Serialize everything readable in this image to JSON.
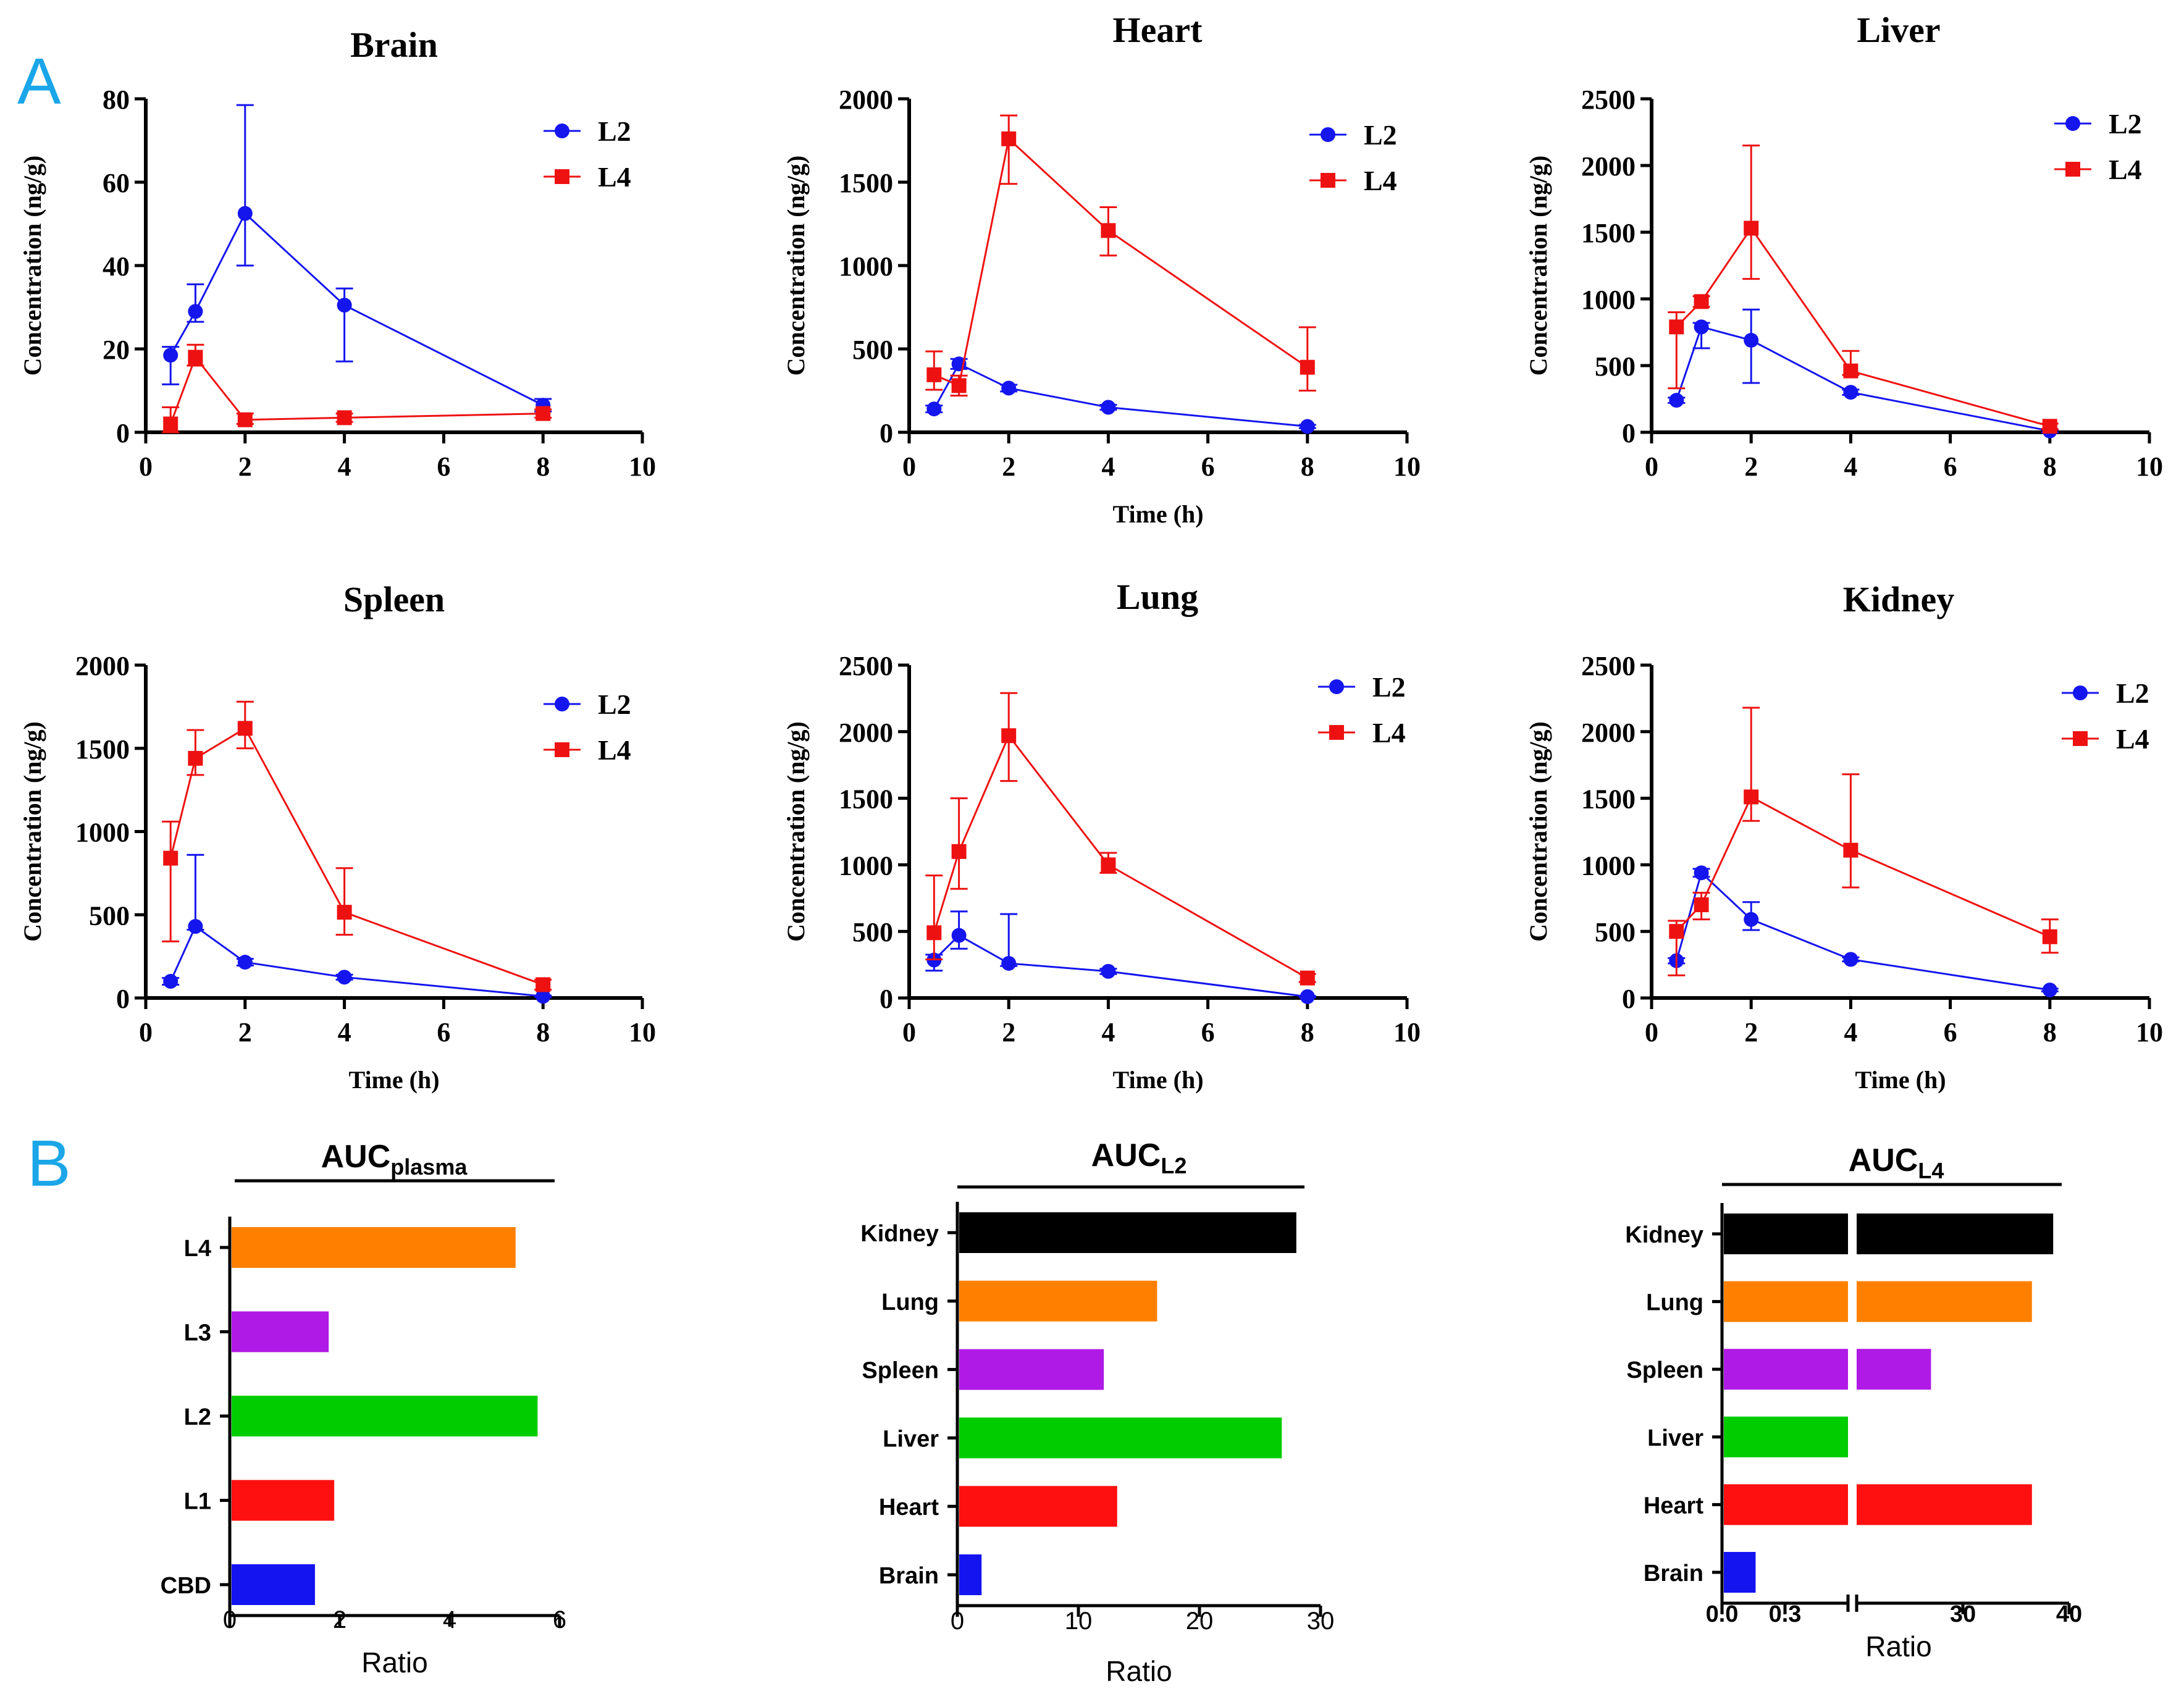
{
  "panel_labels": {
    "a": "A",
    "b": "B"
  },
  "colors": {
    "l2": "#1515ee",
    "l4": "#ee1111",
    "axis": "#000000"
  },
  "series_names": {
    "l2": "L2",
    "l4": "L4"
  },
  "line_charts": {
    "common": {
      "ylabel": "Concentration (ng/g)",
      "xlabel": "Time (h)",
      "xlim": [
        0,
        10
      ],
      "xticks": [
        0,
        2,
        4,
        6,
        8,
        10
      ]
    }
  },
  "chart_data": [
    {
      "type": "line",
      "title": "Brain",
      "ylim": [
        0,
        80
      ],
      "yticks": [
        0,
        20,
        40,
        60,
        80
      ],
      "show_xlabel": false,
      "series": [
        {
          "name": "L2",
          "x": [
            0.5,
            1,
            2,
            4,
            8
          ],
          "values": [
            18.5,
            29,
            52.5,
            30.5,
            6.5
          ],
          "err_hi": [
            2,
            6.5,
            26,
            4,
            1.5
          ],
          "err_lo": [
            7,
            2.5,
            12.5,
            13.5,
            1.5
          ]
        },
        {
          "name": "L4",
          "x": [
            0.5,
            1,
            2,
            4,
            8
          ],
          "values": [
            2,
            18,
            3,
            3.5,
            4.5
          ],
          "err_hi": [
            4,
            3,
            1.5,
            1,
            1
          ],
          "err_lo": [
            2,
            2,
            1,
            1,
            1
          ]
        }
      ]
    },
    {
      "type": "line",
      "title": "Heart",
      "ylim": [
        0,
        2000
      ],
      "yticks": [
        0,
        500,
        1000,
        1500,
        2000
      ],
      "show_xlabel": true,
      "series": [
        {
          "name": "L2",
          "x": [
            0.5,
            1,
            2,
            4,
            8
          ],
          "values": [
            140,
            410,
            265,
            150,
            35
          ],
          "err_hi": [
            20,
            30,
            20,
            15,
            10
          ],
          "err_lo": [
            20,
            30,
            20,
            15,
            10
          ]
        },
        {
          "name": "L4",
          "x": [
            0.5,
            1,
            2,
            4,
            8
          ],
          "values": [
            345,
            280,
            1760,
            1210,
            390
          ],
          "err_hi": [
            140,
            60,
            140,
            140,
            240
          ],
          "err_lo": [
            90,
            60,
            270,
            150,
            140
          ]
        }
      ]
    },
    {
      "type": "line",
      "title": "Liver",
      "ylim": [
        0,
        2500
      ],
      "yticks": [
        0,
        500,
        1000,
        1500,
        2000,
        2500
      ],
      "show_xlabel": false,
      "series": [
        {
          "name": "L2",
          "x": [
            0.5,
            1,
            2,
            4,
            8
          ],
          "values": [
            240,
            790,
            690,
            300,
            10
          ],
          "err_hi": [
            20,
            30,
            230,
            20,
            10
          ],
          "err_lo": [
            20,
            160,
            320,
            20,
            10
          ]
        },
        {
          "name": "L4",
          "x": [
            0.5,
            1,
            2,
            4,
            8
          ],
          "values": [
            790,
            980,
            1530,
            460,
            45
          ],
          "err_hi": [
            110,
            40,
            620,
            150,
            20
          ],
          "err_lo": [
            460,
            40,
            380,
            30,
            20
          ]
        }
      ]
    },
    {
      "type": "line",
      "title": "Spleen",
      "ylim": [
        0,
        2000
      ],
      "yticks": [
        0,
        500,
        1000,
        1500,
        2000
      ],
      "show_xlabel": true,
      "series": [
        {
          "name": "L2",
          "x": [
            0.5,
            1,
            2,
            4,
            8
          ],
          "values": [
            100,
            430,
            215,
            125,
            10
          ],
          "err_hi": [
            20,
            430,
            20,
            15,
            5
          ],
          "err_lo": [
            20,
            20,
            20,
            15,
            5
          ]
        },
        {
          "name": "L4",
          "x": [
            0.5,
            1,
            2,
            4,
            8
          ],
          "values": [
            840,
            1440,
            1620,
            515,
            80
          ],
          "err_hi": [
            220,
            170,
            160,
            265,
            30
          ],
          "err_lo": [
            500,
            100,
            120,
            135,
            30
          ]
        }
      ]
    },
    {
      "type": "line",
      "title": "Lung",
      "ylim": [
        0,
        2500
      ],
      "yticks": [
        0,
        500,
        1000,
        1500,
        2000,
        2500
      ],
      "show_xlabel": true,
      "series": [
        {
          "name": "L2",
          "x": [
            0.5,
            1,
            2,
            4,
            8
          ],
          "values": [
            285,
            470,
            260,
            200,
            10
          ],
          "err_hi": [
            40,
            180,
            370,
            20,
            5
          ],
          "err_lo": [
            80,
            100,
            20,
            20,
            5
          ]
        },
        {
          "name": "L4",
          "x": [
            0.5,
            1,
            2,
            4,
            8
          ],
          "values": [
            490,
            1100,
            1970,
            1000,
            150
          ],
          "err_hi": [
            430,
            400,
            320,
            90,
            30
          ],
          "err_lo": [
            200,
            280,
            340,
            60,
            30
          ]
        }
      ]
    },
    {
      "type": "line",
      "title": "Kidney",
      "ylim": [
        0,
        2500
      ],
      "yticks": [
        0,
        500,
        1000,
        1500,
        2000,
        2500
      ],
      "show_xlabel": true,
      "series": [
        {
          "name": "L2",
          "x": [
            0.5,
            1,
            2,
            4,
            8
          ],
          "values": [
            280,
            940,
            590,
            290,
            60
          ],
          "err_hi": [
            20,
            30,
            130,
            15,
            10
          ],
          "err_lo": [
            20,
            30,
            80,
            15,
            10
          ]
        },
        {
          "name": "L4",
          "x": [
            0.5,
            1,
            2,
            4,
            8
          ],
          "values": [
            500,
            700,
            1510,
            1110,
            460
          ],
          "err_hi": [
            80,
            90,
            670,
            570,
            130
          ],
          "err_lo": [
            330,
            110,
            180,
            280,
            120
          ]
        }
      ]
    },
    {
      "type": "bar",
      "orientation": "horizontal",
      "title_main": "AUC",
      "title_sub": "plasma",
      "categories": [
        "L4",
        "L3",
        "L2",
        "L1",
        "CBD"
      ],
      "values": [
        5.2,
        1.8,
        5.6,
        1.9,
        1.55
      ],
      "bar_colors": [
        "#ff8000",
        "#b01ae6",
        "#00cc00",
        "#ff1010",
        "#1414f0"
      ],
      "xlim": [
        0,
        6
      ],
      "xticks": [
        0,
        2,
        4,
        6
      ],
      "xlabel": "Ratio"
    },
    {
      "type": "bar",
      "orientation": "horizontal",
      "title_main": "AUC",
      "title_sub": "L2",
      "categories": [
        "Kidney",
        "Lung",
        "Spleen",
        "Liver",
        "Heart",
        "Brain"
      ],
      "values": [
        28,
        16.5,
        12.1,
        26.8,
        13.2,
        2.0
      ],
      "bar_colors": [
        "#000000",
        "#ff8000",
        "#b01ae6",
        "#00cc00",
        "#ff1010",
        "#1414f0"
      ],
      "xlim": [
        0,
        30
      ],
      "xticks": [
        0,
        10,
        20,
        30
      ],
      "xlabel": "Ratio"
    },
    {
      "type": "bar",
      "orientation": "horizontal",
      "broken_axis": true,
      "title_main": "AUC",
      "title_sub": "L4",
      "categories": [
        "Kidney",
        "Lung",
        "Spleen",
        "Liver",
        "Heart",
        "Brain"
      ],
      "values": [
        38.5,
        36.5,
        27,
        0.6,
        36.5,
        0.16
      ],
      "bar_colors": [
        "#000000",
        "#ff8000",
        "#b01ae6",
        "#00cc00",
        "#ff1010",
        "#1414f0"
      ],
      "segment1": [
        0,
        0.6
      ],
      "segment2": [
        20,
        40
      ],
      "tick_labels": [
        "0.0",
        "0.3",
        "30",
        "40"
      ],
      "xlabel": "Ratio"
    }
  ]
}
